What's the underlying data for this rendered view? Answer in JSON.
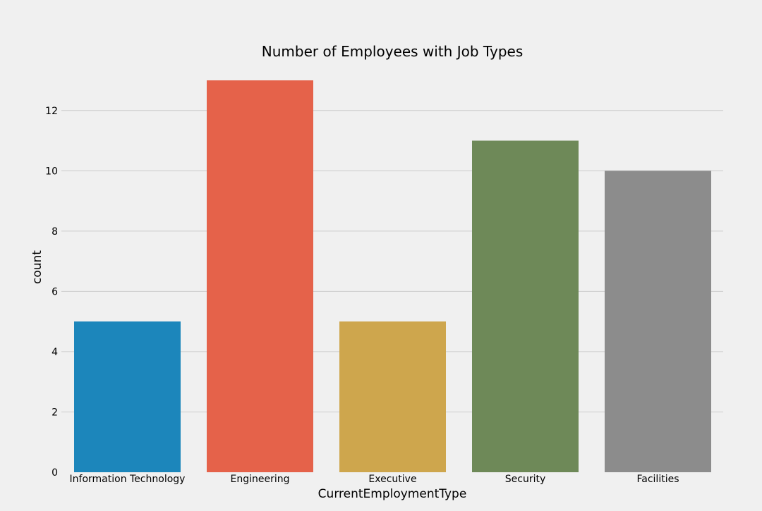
{
  "chart_data": {
    "type": "bar",
    "title": "Number of Employees with Job Types",
    "xlabel": "CurrentEmploymentType",
    "ylabel": "count",
    "categories": [
      "Information Technology",
      "Engineering",
      "Executive",
      "Security",
      "Facilities"
    ],
    "values": [
      5,
      13,
      5,
      11,
      10
    ],
    "colors": [
      "#1c86bb",
      "#e5624a",
      "#cea64d",
      "#6e8958",
      "#8c8c8c"
    ],
    "ylim": [
      0,
      13
    ],
    "yticks": [
      0,
      2,
      4,
      6,
      8,
      10,
      12
    ],
    "grid": "horizontal",
    "background": "#f0f0f0",
    "gridline_color": "#cbcbcb"
  }
}
